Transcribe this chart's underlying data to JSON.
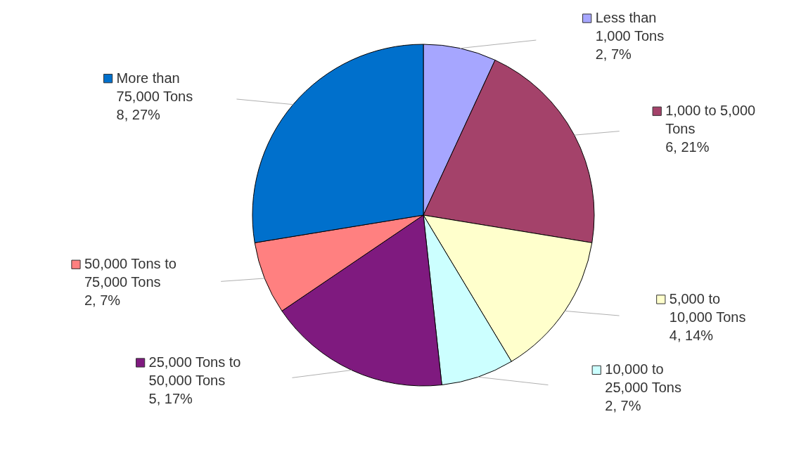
{
  "chart_data": {
    "type": "pie",
    "categories": [
      "Less than 1,000 Tons",
      "1,000 to 5,000 Tons",
      "5,000 to 10,000 Tons",
      "10,000 to 25,000 Tons",
      "25,000 Tons to 50,000 Tons",
      "50,000 Tons to 75,000 Tons",
      "More than 75,000 Tons"
    ],
    "values": [
      2,
      6,
      4,
      2,
      5,
      2,
      8
    ],
    "value_labels": [
      "2, 7%",
      "6, 21%",
      "4, 14%",
      "2, 7%",
      "5, 17%",
      "2, 7%",
      "8, 27%"
    ],
    "legend": "right",
    "colors": [
      "#a6a6ff",
      "#a4426a",
      "#ffffcc",
      "#ccffff",
      "#7f1a7f",
      "#ff8080",
      "#0070cc"
    ]
  }
}
